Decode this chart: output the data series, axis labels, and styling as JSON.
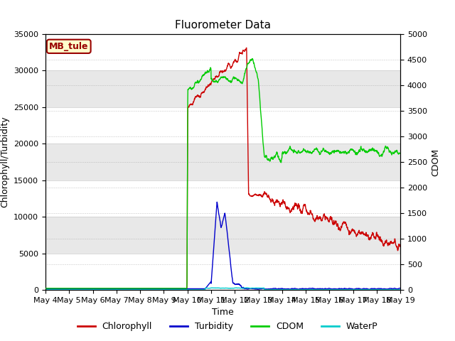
{
  "title": "Fluorometer Data",
  "xlabel": "Time",
  "ylabel_left": "Chlorophyll/Turbidity",
  "ylabel_right": "CDOM",
  "ylim_left": [
    0,
    35000
  ],
  "ylim_right": [
    0,
    5000
  ],
  "xtick_labels": [
    "May 4",
    "May 5",
    "May 6",
    "May 7",
    "May 8",
    "May 9",
    "May 10",
    "May 11",
    "May 12",
    "May 13",
    "May 14",
    "May 15",
    "May 16",
    "May 17",
    "May 18",
    "May 19"
  ],
  "annotation_text": "MB_tule",
  "annotation_bgcolor": "#ffffcc",
  "annotation_edgecolor": "#990000",
  "fig_facecolor": "#ffffff",
  "plot_facecolor": "#ffffff",
  "band_color": "#e8e8e8",
  "colors": {
    "Chlorophyll": "#cc0000",
    "Turbidity": "#0000cc",
    "CDOM": "#00cc00",
    "WaterP": "#00cccc"
  },
  "title_fontsize": 11,
  "axis_label_fontsize": 9,
  "tick_fontsize": 8,
  "legend_fontsize": 9
}
